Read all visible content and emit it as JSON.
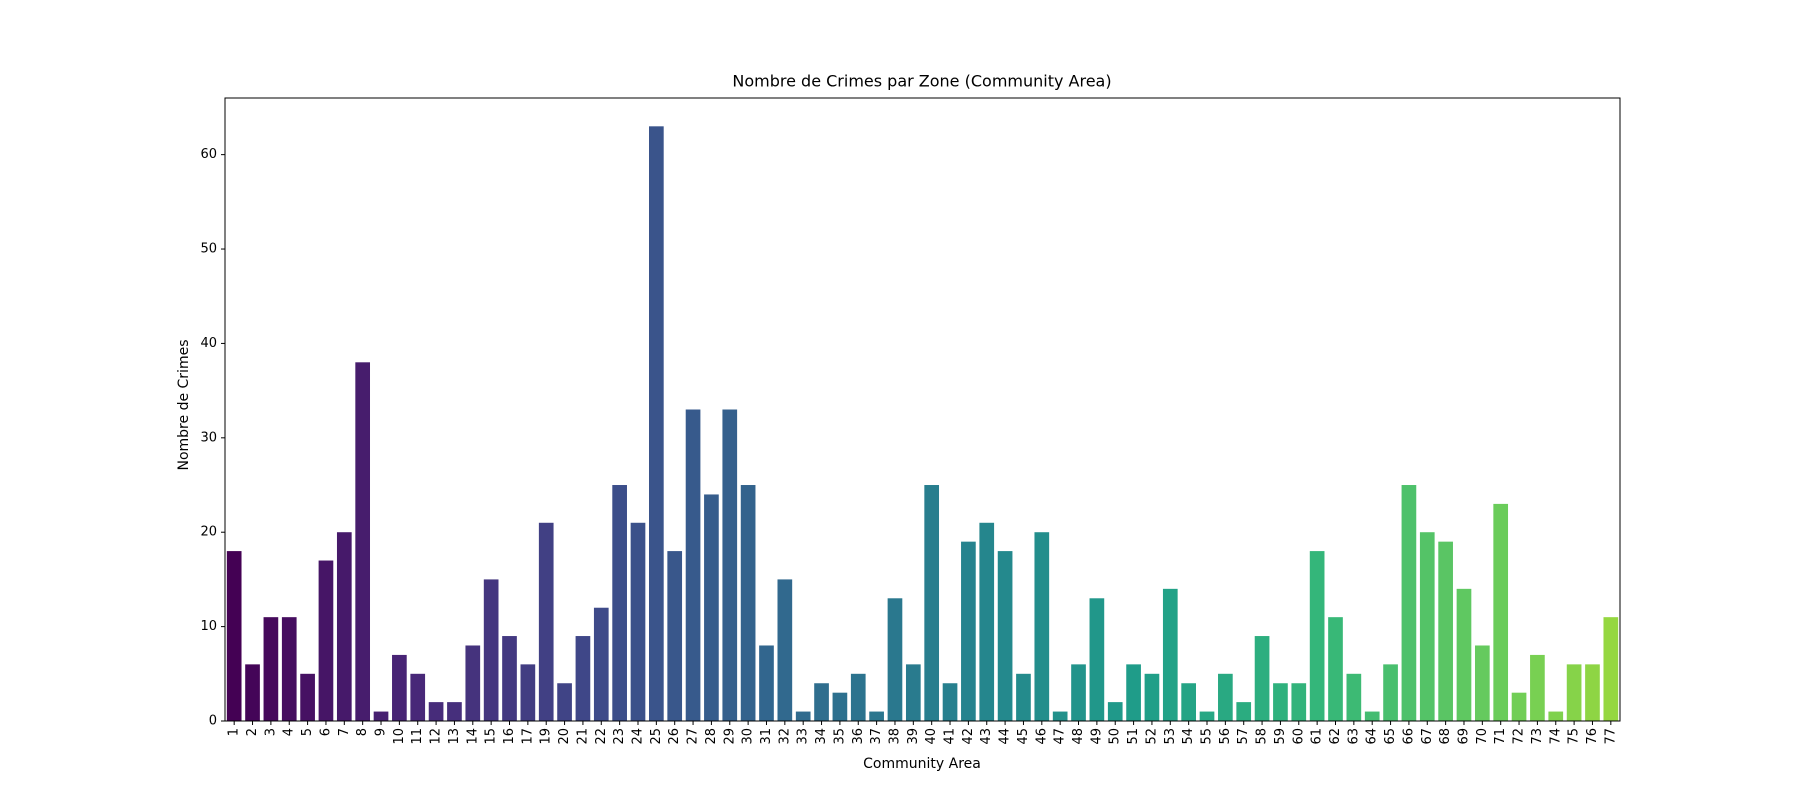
{
  "chart_data": {
    "type": "bar",
    "title": "Nombre de Crimes par Zone (Community Area)",
    "xlabel": "Community Area",
    "ylabel": "Nombre de Crimes",
    "palette": "viridis",
    "categories": [
      1,
      2,
      3,
      4,
      5,
      6,
      7,
      8,
      9,
      10,
      11,
      12,
      13,
      14,
      15,
      16,
      17,
      19,
      20,
      21,
      22,
      23,
      24,
      25,
      26,
      27,
      28,
      29,
      30,
      31,
      32,
      33,
      34,
      35,
      36,
      37,
      38,
      39,
      40,
      41,
      42,
      43,
      44,
      45,
      46,
      47,
      48,
      49,
      50,
      51,
      52,
      53,
      54,
      55,
      56,
      57,
      58,
      59,
      60,
      61,
      62,
      63,
      64,
      65,
      66,
      67,
      68,
      69,
      70,
      71,
      72,
      73,
      74,
      75,
      76,
      77
    ],
    "values": [
      18,
      6,
      11,
      11,
      5,
      17,
      20,
      38,
      1,
      7,
      5,
      2,
      2,
      8,
      15,
      9,
      6,
      21,
      4,
      9,
      12,
      25,
      21,
      63,
      18,
      33,
      24,
      33,
      25,
      8,
      15,
      1,
      4,
      3,
      5,
      1,
      13,
      6,
      25,
      4,
      19,
      21,
      18,
      5,
      20,
      1,
      6,
      13,
      2,
      6,
      5,
      14,
      4,
      1,
      5,
      2,
      9,
      4,
      4,
      18,
      11,
      5,
      1,
      6,
      25,
      20,
      19,
      14,
      8,
      23,
      3,
      7,
      1,
      6,
      6,
      11
    ],
    "ylim": [
      0,
      66
    ],
    "yticks": [
      0,
      10,
      20,
      30,
      40,
      50,
      60
    ]
  }
}
